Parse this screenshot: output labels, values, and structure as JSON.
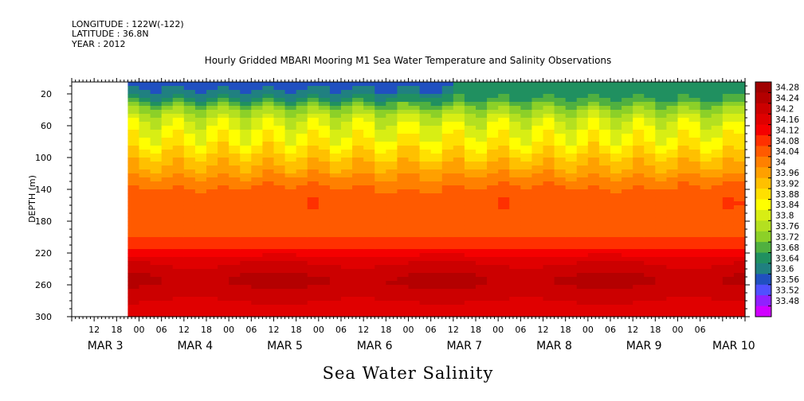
{
  "header": {
    "longitude": "LONGITUDE : 122W(-122)",
    "latitude": "LATITUDE : 36.8N",
    "year": "YEAR : 2012"
  },
  "chart_data": {
    "type": "heatmap",
    "title": "Hourly Gridded MBARI Mooring M1 Sea Water Temperature and Salinity Observations",
    "xtitle": "Sea Water Salinity",
    "ylabel": "DEPTH (m)",
    "ylim": [
      300,
      5
    ],
    "y_ticks": [
      20,
      60,
      100,
      140,
      180,
      220,
      260,
      300
    ],
    "x_range_hours": [
      0,
      180
    ],
    "data_start_hour": 15,
    "x_hour_ticks": [
      "12",
      "18",
      "00",
      "06",
      "12",
      "18",
      "00",
      "06",
      "12",
      "18",
      "00",
      "06",
      "12",
      "18",
      "00",
      "06",
      "12",
      "18",
      "00",
      "06",
      "12",
      "18",
      "00",
      "06",
      "12",
      "18",
      "00",
      "06"
    ],
    "x_day_labels": [
      "MAR  3",
      "MAR  4",
      "MAR  5",
      "MAR  6",
      "MAR  7",
      "MAR  8",
      "MAR  9",
      "MAR 10"
    ],
    "colorbar_levels": [
      34.28,
      34.24,
      34.2,
      34.16,
      34.12,
      34.08,
      34.04,
      34,
      33.96,
      33.92,
      33.88,
      33.84,
      33.8,
      33.76,
      33.72,
      33.68,
      33.64,
      33.6,
      33.56,
      33.52,
      33.48
    ],
    "colorbar_colors": [
      "#a00000",
      "#b40000",
      "#cc0000",
      "#e00000",
      "#f50000",
      "#ff3000",
      "#ff5a00",
      "#ff8000",
      "#ffa000",
      "#ffc000",
      "#ffe000",
      "#ffff00",
      "#d8ee14",
      "#b4e020",
      "#8cd028",
      "#50b040",
      "#209060",
      "#208080",
      "#2050c0",
      "#5050ff",
      "#9020ff",
      "#d000ff"
    ],
    "profile_depths": [
      5,
      15,
      25,
      35,
      45,
      60,
      80,
      100,
      115,
      130,
      145,
      160,
      180,
      200,
      215,
      230,
      245,
      255,
      265,
      280,
      300
    ],
    "profile_salinity": [
      33.58,
      33.6,
      33.64,
      33.72,
      33.78,
      33.83,
      33.87,
      33.93,
      33.97,
      34.02,
      34.06,
      34.07,
      34.06,
      34.08,
      34.12,
      34.19,
      34.23,
      34.25,
      34.23,
      34.2,
      34.18
    ]
  }
}
